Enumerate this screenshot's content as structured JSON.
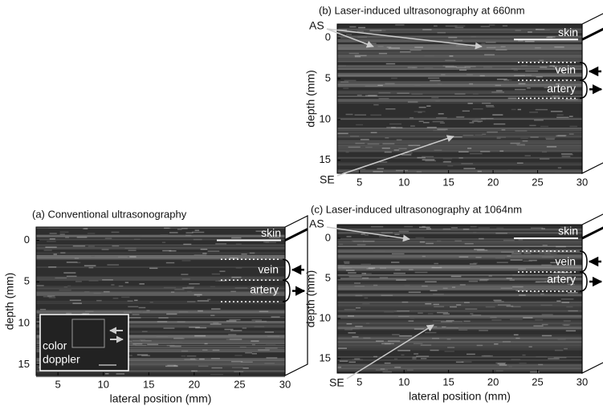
{
  "panels": [
    {
      "title": "(a) Conventional ultrasonography",
      "xlabel": "lateral position (mm)",
      "ylabel": "depth (mm)",
      "xlim": [
        2.6,
        30
      ],
      "ylim": [
        -1.6,
        16.3
      ],
      "xticks": [
        5,
        10,
        15,
        20,
        25,
        30
      ],
      "yticks": [
        0,
        5,
        10,
        15
      ],
      "labels": {
        "skin": "skin",
        "vein": "vein",
        "artery": "artery"
      },
      "inset_label": [
        "color",
        "doppler"
      ]
    },
    {
      "title": "(b) Laser-induced ultrasonography at 660nm",
      "ylabel": "depth (mm)",
      "xlim": [
        2.5,
        30
      ],
      "ylim": [
        -1.7,
        16.6
      ],
      "xticks": [
        5,
        10,
        15,
        20,
        25,
        30
      ],
      "yticks": [
        0,
        5,
        10,
        15
      ],
      "labels": {
        "skin": "skin",
        "vein": "vein",
        "artery": "artery"
      },
      "markers": [
        "AS",
        "SE"
      ]
    },
    {
      "title": "(c) Laser-induced ultrasonography at 1064nm",
      "xlabel": "lateral position (mm)",
      "ylabel": "depth (mm)",
      "xlim": [
        2.5,
        30
      ],
      "ylim": [
        -1.7,
        16.8
      ],
      "xticks": [
        5,
        10,
        15,
        20,
        25,
        30
      ],
      "yticks": [
        0,
        5,
        10,
        15
      ],
      "labels": {
        "skin": "skin",
        "vein": "vein",
        "artery": "artery"
      },
      "markers": [
        "AS",
        "SE"
      ]
    }
  ]
}
